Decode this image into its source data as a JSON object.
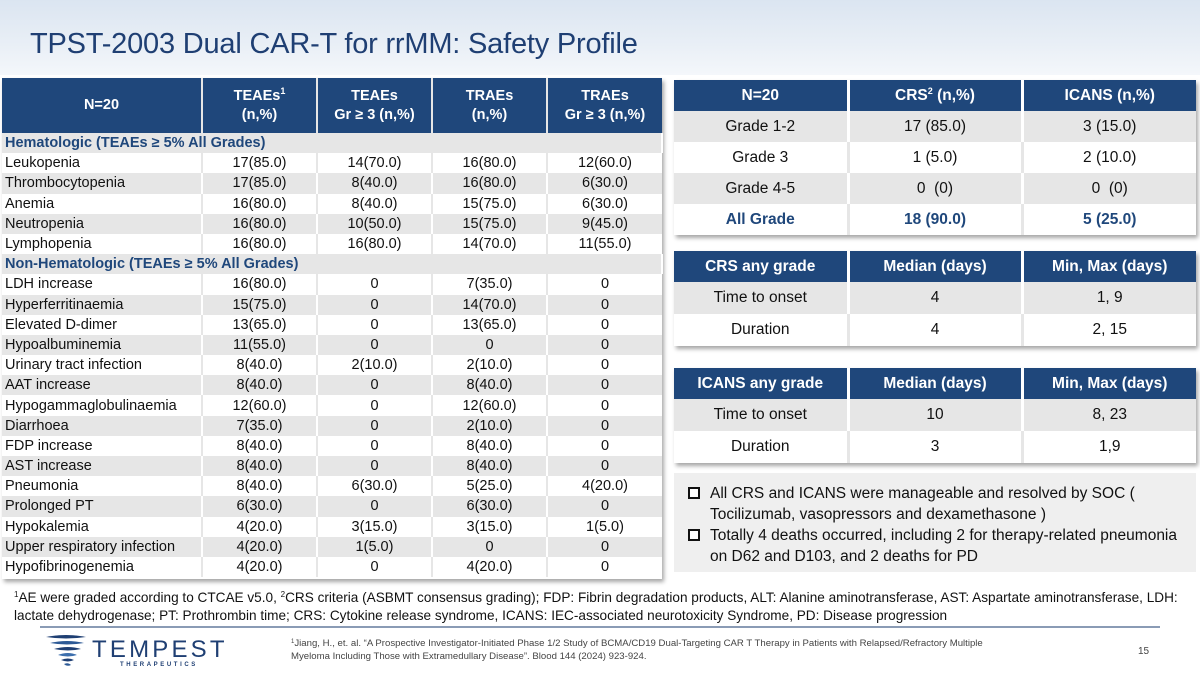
{
  "title": "TPST-2003 Dual CAR-T for rrMM: Safety Profile",
  "ae_table": {
    "headers": [
      {
        "line1": "N=20",
        "sup": "",
        "line2": ""
      },
      {
        "line1": "TEAEs",
        "sup": "1",
        "line2": "(n,%)"
      },
      {
        "line1": "TEAEs",
        "sup": "",
        "line2": "Gr ≥ 3 (n,%)"
      },
      {
        "line1": "TRAEs",
        "sup": "",
        "line2": "(n,%)"
      },
      {
        "line1": "TRAEs",
        "sup": "",
        "line2": "Gr ≥ 3 (n,%)"
      }
    ],
    "sections": [
      {
        "label": "Hematologic (TEAEs ≥ 5% All Grades)",
        "rows": [
          {
            "name": "Leukopenia",
            "teae": "17(85.0)",
            "teae_gr3": "14(70.0)",
            "trae": "16(80.0)",
            "trae_gr3": "12(60.0)"
          },
          {
            "name": "Thrombocytopenia",
            "teae": "17(85.0)",
            "teae_gr3": "8(40.0)",
            "trae": "16(80.0)",
            "trae_gr3": "6(30.0)"
          },
          {
            "name": "Anemia",
            "teae": "16(80.0)",
            "teae_gr3": "8(40.0)",
            "trae": "15(75.0)",
            "trae_gr3": "6(30.0)"
          },
          {
            "name": "Neutropenia",
            "teae": "16(80.0)",
            "teae_gr3": "10(50.0)",
            "trae": "15(75.0)",
            "trae_gr3": "9(45.0)"
          },
          {
            "name": "Lymphopenia",
            "teae": "16(80.0)",
            "teae_gr3": "16(80.0)",
            "trae": "14(70.0)",
            "trae_gr3": "11(55.0)"
          }
        ]
      },
      {
        "label": "Non-Hematologic (TEAEs ≥ 5% All Grades)",
        "rows": [
          {
            "name": "LDH increase",
            "teae": "16(80.0)",
            "teae_gr3": "0",
            "trae": "7(35.0)",
            "trae_gr3": "0"
          },
          {
            "name": "Hyperferritinaemia",
            "teae": "15(75.0)",
            "teae_gr3": "0",
            "trae": "14(70.0)",
            "trae_gr3": "0"
          },
          {
            "name": "Elevated D-dimer",
            "teae": "13(65.0)",
            "teae_gr3": "0",
            "trae": "13(65.0)",
            "trae_gr3": "0"
          },
          {
            "name": "Hypoalbuminemia",
            "teae": "11(55.0)",
            "teae_gr3": "0",
            "trae": "0",
            "trae_gr3": "0"
          },
          {
            "name": "Urinary tract infection",
            "teae": "8(40.0)",
            "teae_gr3": "2(10.0)",
            "trae": "2(10.0)",
            "trae_gr3": "0"
          },
          {
            "name": "AAT increase",
            "teae": "8(40.0)",
            "teae_gr3": "0",
            "trae": "8(40.0)",
            "trae_gr3": "0"
          },
          {
            "name": "Hypogammaglobulinaemia",
            "teae": "12(60.0)",
            "teae_gr3": "0",
            "trae": "12(60.0)",
            "trae_gr3": "0"
          },
          {
            "name": "Diarrhoea",
            "teae": "7(35.0)",
            "teae_gr3": "0",
            "trae": "2(10.0)",
            "trae_gr3": "0"
          },
          {
            "name": "FDP increase",
            "teae": "8(40.0)",
            "teae_gr3": "0",
            "trae": "8(40.0)",
            "trae_gr3": "0"
          },
          {
            "name": "AST increase",
            "teae": "8(40.0)",
            "teae_gr3": "0",
            "trae": "8(40.0)",
            "trae_gr3": "0"
          },
          {
            "name": "Pneumonia",
            "teae": "8(40.0)",
            "teae_gr3": "6(30.0)",
            "trae": "5(25.0)",
            "trae_gr3": "4(20.0)"
          },
          {
            "name": "Prolonged PT",
            "teae": "6(30.0)",
            "teae_gr3": "0",
            "trae": "6(30.0)",
            "trae_gr3": "0"
          },
          {
            "name": "Hypokalemia",
            "teae": "4(20.0)",
            "teae_gr3": "3(15.0)",
            "trae": "3(15.0)",
            "trae_gr3": "1(5.0)"
          },
          {
            "name": "Upper respiratory infection",
            "teae": "4(20.0)",
            "teae_gr3": "1(5.0)",
            "trae": "0",
            "trae_gr3": "0"
          },
          {
            "name": "Hypofibrinogenemia",
            "teae": "4(20.0)",
            "teae_gr3": "0",
            "trae": "4(20.0)",
            "trae_gr3": "0"
          }
        ]
      }
    ]
  },
  "crs_icans_table": {
    "headers": [
      {
        "text": "N=20",
        "sup": "",
        "after": ""
      },
      {
        "text": "CRS",
        "sup": "2",
        "after": " (n,%)"
      },
      {
        "text": "ICANS (n,%)",
        "sup": "",
        "after": ""
      }
    ],
    "rows": [
      {
        "label": "Grade 1-2",
        "crs": "17 (85.0)",
        "icans": "3 (15.0)"
      },
      {
        "label": "Grade 3",
        "crs": "1 (5.0)",
        "icans": "2 (10.0)"
      },
      {
        "label": "Grade 4-5",
        "crs": "0  (0)",
        "icans": "0  (0)"
      }
    ],
    "total": {
      "label": "All Grade",
      "crs": "18 (90.0)",
      "icans": "5 (25.0)"
    }
  },
  "crs_timing_table": {
    "headers": [
      "CRS any grade",
      "Median (days)",
      "Min, Max (days)"
    ],
    "rows": [
      {
        "label": "Time to onset",
        "median": "4",
        "range": "1, 9"
      },
      {
        "label": "Duration",
        "median": "4",
        "range": "2, 15"
      }
    ]
  },
  "icans_timing_table": {
    "headers": [
      "ICANS any grade",
      "Median (days)",
      "Min, Max (days)"
    ],
    "rows": [
      {
        "label": "Time to onset",
        "median": "10",
        "range": "8, 23"
      },
      {
        "label": "Duration",
        "median": "3",
        "range": "1,9"
      }
    ]
  },
  "notes": [
    "All CRS and ICANS were manageable and resolved by SOC ( Tocilizumab, vasopressors and dexamethasone )",
    "Totally 4 deaths occurred, including 2 for therapy-related pneumonia on D62 and D103, and 2 deaths for PD"
  ],
  "footnote": {
    "sup1": "1",
    "part1": "AE were graded according to CTCAE v5.0, ",
    "sup2": "2",
    "part2": "CRS criteria (ASBMT consensus grading); FDP: Fibrin degradation products, ALT: Alanine aminotransferase, AST: Aspartate aminotransferase, LDH: lactate dehydrogenase; PT: Prothrombin time; CRS: Cytokine release syndrome, ICANS: IEC-associated neurotoxicity Syndrome, PD: Disease progression"
  },
  "logo": {
    "name": "TEMPEST",
    "subtitle": "THERAPEUTICS"
  },
  "reference": {
    "sup": "1",
    "text": "Jiang, H., et. al. “A Prospective Investigator-Initiated Phase 1/2 Study of BCMA/CD19 Dual-Targeting CAR T Therapy in Patients with Relapsed/Refractory Multiple Myeloma Including Those with Extramedullary Disease”. Blood 144 (2024) 923-924."
  },
  "page_number": "15",
  "colors": {
    "header_navy": "#1f477b",
    "title_blue": "#1f3f73",
    "row_gray": "#e6e6e6"
  }
}
